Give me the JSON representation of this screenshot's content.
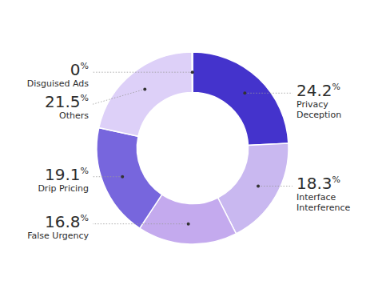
{
  "chart_data": {
    "type": "pie",
    "categories": [
      "Privacy\nDeception",
      "Interface\nInterference",
      "False Urgency",
      "Drip Pricing",
      "Others",
      "Disguised Ads"
    ],
    "values": [
      24.2,
      18.3,
      16.8,
      19.1,
      21.5,
      0.1
    ],
    "value_labels": [
      "24.2%",
      "18.3%",
      "16.8%",
      "19.1%",
      "21.5%",
      "0%"
    ],
    "colors": [
      "#4433cc",
      "#c9b8f0",
      "#c4aaee",
      "#7766dd",
      "#ddd0f8",
      "#e8e0fc"
    ],
    "data_labels": true
  }
}
